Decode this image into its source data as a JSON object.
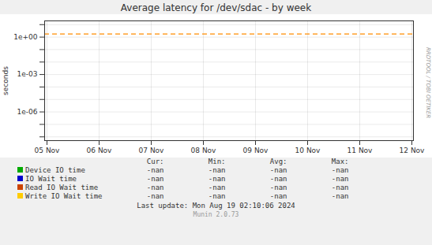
{
  "chart_data": {
    "type": "line",
    "title": "Average latency for /dev/sdac - by week",
    "ylabel": "seconds",
    "categories": [
      "05 Nov",
      "06 Nov",
      "07 Nov",
      "08 Nov",
      "09 Nov",
      "10 Nov",
      "11 Nov",
      "12 Nov"
    ],
    "series": [
      {
        "name": "Device IO time",
        "color": "#00aa00",
        "values": [
          null,
          null,
          null,
          null,
          null,
          null,
          null,
          null
        ],
        "stat_values": [
          "-nan",
          "-nan",
          "-nan",
          "-nan"
        ]
      },
      {
        "name": "IO Wait time",
        "color": "#0000cc",
        "values": [
          null,
          null,
          null,
          null,
          null,
          null,
          null,
          null
        ],
        "stat_values": [
          "-nan",
          "-nan",
          "-nan",
          "-nan"
        ]
      },
      {
        "name": "Read IO Wait time",
        "color": "#cc4400",
        "values": [
          null,
          null,
          null,
          null,
          null,
          null,
          null,
          null
        ],
        "stat_values": [
          "-nan",
          "-nan",
          "-nan",
          "-nan"
        ]
      },
      {
        "name": "Write IO Wait time",
        "color": "#ffcc00",
        "values": [
          null,
          null,
          null,
          null,
          null,
          null,
          null,
          null
        ],
        "stat_values": [
          "-nan",
          "-nan",
          "-nan",
          "-nan"
        ]
      }
    ],
    "stat_labels": [
      "Cur:",
      "Min:",
      "Avg:",
      "Max:"
    ],
    "hlines": [
      {
        "y": 1.8,
        "color": "#ff8c00",
        "line_style": "dashed"
      }
    ],
    "log": "y",
    "ylim": [
      5e-09,
      20
    ],
    "yticks": [
      {
        "value": 1e-08,
        "label": null
      },
      {
        "value": 1e-07,
        "label": null
      },
      {
        "value": 1e-06,
        "label": "1e-06"
      },
      {
        "value": 1e-05,
        "label": null
      },
      {
        "value": 0.0001,
        "label": null
      },
      {
        "value": 0.001,
        "label": "1e-03"
      },
      {
        "value": 0.01,
        "label": null
      },
      {
        "value": 0.1,
        "label": null
      },
      {
        "value": 1,
        "label": "1e+00"
      },
      {
        "value": 10,
        "label": null
      }
    ],
    "grid": true,
    "annotations": [
      "Last update: Mon Aug 19 02:10:06 2024",
      "Munin 2.0.73",
      "RRDTOOL / TOBI OETIKER"
    ]
  }
}
